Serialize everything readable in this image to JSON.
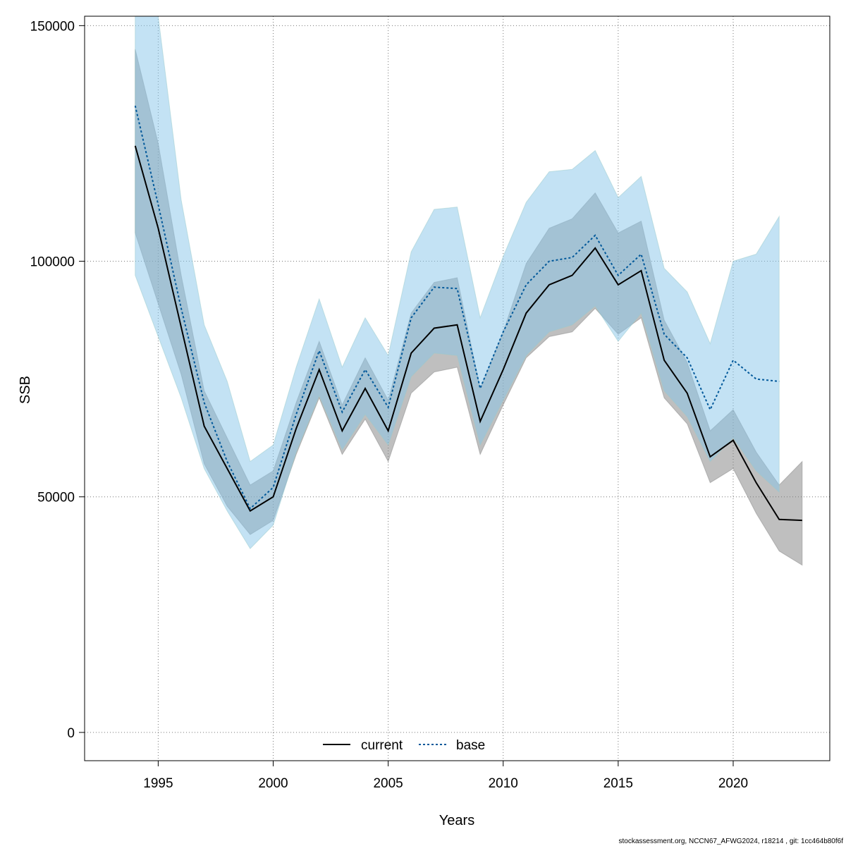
{
  "chart_data": {
    "type": "line",
    "xlabel": "Years",
    "ylabel": "SSB",
    "xlim": [
      1991.8,
      2024.2
    ],
    "ylim": [
      -6000,
      152000
    ],
    "xticks": [
      1995,
      2000,
      2005,
      2010,
      2015,
      2020
    ],
    "yticks": [
      0,
      50000,
      100000,
      150000
    ],
    "xtick_labels": [
      "1995",
      "2000",
      "2005",
      "2010",
      "2015",
      "2020"
    ],
    "ytick_labels": [
      "0",
      "50000",
      "100000",
      "150000"
    ],
    "grid": true,
    "legend_position": "bottom-center",
    "footnote": "stockassessment.org, NCCN67_AFWG2024, r18214 , git: 1cc464b80f6f",
    "series": [
      {
        "name": "current",
        "color": "#000000",
        "line_style": "solid",
        "band_color": "#808080",
        "x": [
          1994,
          1995,
          1996,
          1997,
          1998,
          1999,
          2000,
          2001,
          2002,
          2003,
          2004,
          2005,
          2006,
          2007,
          2008,
          2009,
          2010,
          2011,
          2012,
          2013,
          2014,
          2015,
          2016,
          2017,
          2018,
          2019,
          2020,
          2021,
          2022,
          2023
        ],
        "y": [
          124500,
          107000,
          86000,
          65000,
          56000,
          47000,
          50000,
          64500,
          77000,
          64000,
          73000,
          64000,
          80500,
          85800,
          86500,
          66000,
          77000,
          89000,
          95000,
          97000,
          102800,
          95000,
          98000,
          79000,
          72000,
          58500,
          62000,
          53000,
          45200,
          45000
        ],
        "lower": [
          106000,
          91000,
          76000,
          57000,
          48000,
          42000,
          45000,
          59000,
          71000,
          59000,
          66500,
          57500,
          72000,
          76500,
          77500,
          59000,
          69500,
          79500,
          84000,
          85000,
          90000,
          84500,
          88000,
          71000,
          65500,
          53000,
          56000,
          46500,
          38500,
          35500
        ],
        "upper": [
          145000,
          125000,
          97000,
          72500,
          62500,
          52500,
          55500,
          70000,
          83000,
          69500,
          79500,
          70500,
          89000,
          95500,
          96500,
          73000,
          85000,
          99500,
          107000,
          109000,
          114500,
          106000,
          108500,
          87500,
          78500,
          64000,
          68500,
          59500,
          52500,
          57500
        ]
      },
      {
        "name": "base",
        "color": "#00589a",
        "line_style": "dotted",
        "band_color": "#87c5ea",
        "x": [
          1994,
          1995,
          1996,
          1997,
          1998,
          1999,
          2000,
          2001,
          2002,
          2003,
          2004,
          2005,
          2006,
          2007,
          2008,
          2009,
          2010,
          2011,
          2012,
          2013,
          2014,
          2015,
          2016,
          2017,
          2018,
          2019,
          2020,
          2021,
          2022
        ],
        "y": [
          133000,
          112000,
          90000,
          70000,
          57500,
          47500,
          52000,
          67500,
          81000,
          68000,
          77000,
          69000,
          88000,
          94500,
          94200,
          73000,
          85000,
          95000,
          100000,
          100800,
          105500,
          97000,
          101500,
          84500,
          79500,
          68500,
          79000,
          75000,
          74500
        ],
        "lower": [
          97000,
          84000,
          71000,
          56000,
          47000,
          39000,
          44000,
          59500,
          71500,
          60000,
          67500,
          61000,
          75500,
          80500,
          80000,
          61000,
          70500,
          80000,
          85000,
          86500,
          90500,
          83000,
          89000,
          72500,
          67000,
          57500,
          62500,
          55500,
          51000
        ],
        "upper": [
          152000,
          152000,
          113000,
          86500,
          74500,
          57500,
          61000,
          77500,
          92000,
          77500,
          88000,
          80000,
          102000,
          111000,
          111500,
          88000,
          101000,
          112500,
          119000,
          119500,
          123500,
          113500,
          118000,
          98500,
          93500,
          82500,
          100000,
          101500,
          109500
        ]
      }
    ]
  }
}
